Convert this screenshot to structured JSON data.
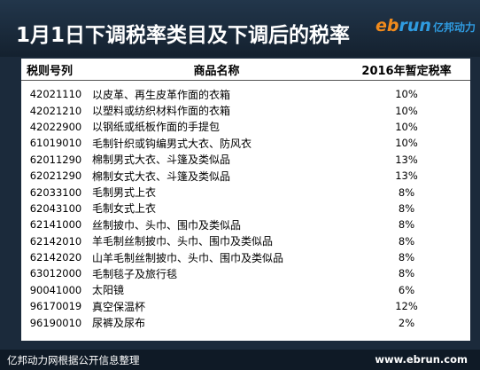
{
  "header": {
    "title": "1月1日下调税率类目及下调后的税率",
    "logo_e": "eb",
    "logo_run": "run",
    "logo_cn": "亿邦动力"
  },
  "table": {
    "columns": [
      "税则号列",
      "商品名称",
      "2016年暂定税率"
    ],
    "rows": [
      {
        "code": "42021110",
        "name": "以皮革、再生皮革作面的衣箱",
        "rate": "10%"
      },
      {
        "code": "42021210",
        "name": "以塑料或纺织材料作面的衣箱",
        "rate": "10%"
      },
      {
        "code": "42022900",
        "name": "以钢纸或纸板作面的手提包",
        "rate": "10%"
      },
      {
        "code": "61019010",
        "name": "毛制针织或钩编男式大衣、防风衣",
        "rate": "10%"
      },
      {
        "code": "62011290",
        "name": "棉制男式大衣、斗篷及类似品",
        "rate": "13%"
      },
      {
        "code": "62021290",
        "name": "棉制女式大衣、斗篷及类似品",
        "rate": "13%"
      },
      {
        "code": "62033100",
        "name": "毛制男式上衣",
        "rate": "8%"
      },
      {
        "code": "62043100",
        "name": "毛制女式上衣",
        "rate": "8%"
      },
      {
        "code": "62141000",
        "name": "丝制披巾、头巾、围巾及类似品",
        "rate": "8%"
      },
      {
        "code": "62142010",
        "name": "羊毛制丝制披巾、头巾、围巾及类似品",
        "rate": "8%"
      },
      {
        "code": "62142020",
        "name": "山羊毛制丝制披巾、头巾、围巾及类似品",
        "rate": "8%"
      },
      {
        "code": "63012000",
        "name": "毛制毯子及旅行毯",
        "rate": "8%"
      },
      {
        "code": "90041000",
        "name": "太阳镜",
        "rate": "6%"
      },
      {
        "code": "96170019",
        "name": "真空保温杯",
        "rate": "12%"
      },
      {
        "code": "96190010",
        "name": "尿裤及尿布",
        "rate": "2%"
      }
    ]
  },
  "footer": {
    "left": "亿邦动力网根据公开信息整理",
    "right": "www.ebrun.com"
  }
}
